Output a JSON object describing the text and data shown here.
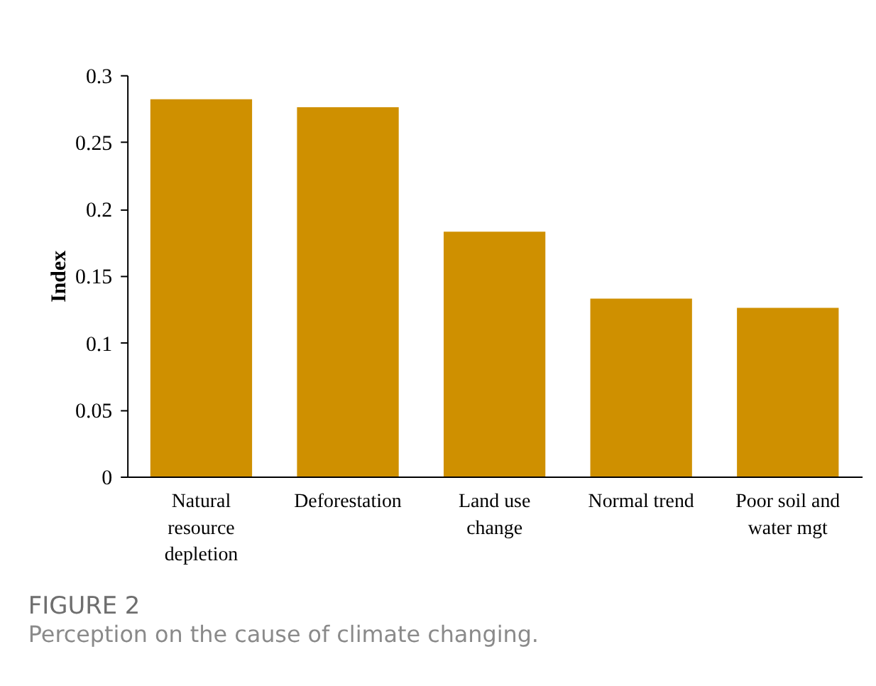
{
  "chart_data": {
    "type": "bar",
    "title": "FIGURE 2",
    "subtitle": "Perception on the cause of climate changing.",
    "ylabel": "Index",
    "categories": [
      "Natural\nresource\ndepletion",
      "Deforestation",
      "Land use\nchange",
      "Normal trend",
      "Poor soil and\nwater mgt"
    ],
    "values": [
      0.282,
      0.276,
      0.183,
      0.133,
      0.126
    ],
    "color": "#cf9000",
    "ylim": [
      0,
      0.3
    ],
    "yticks": [
      0,
      0.05,
      0.1,
      0.15,
      0.2,
      0.25,
      0.3
    ],
    "grid": false
  }
}
